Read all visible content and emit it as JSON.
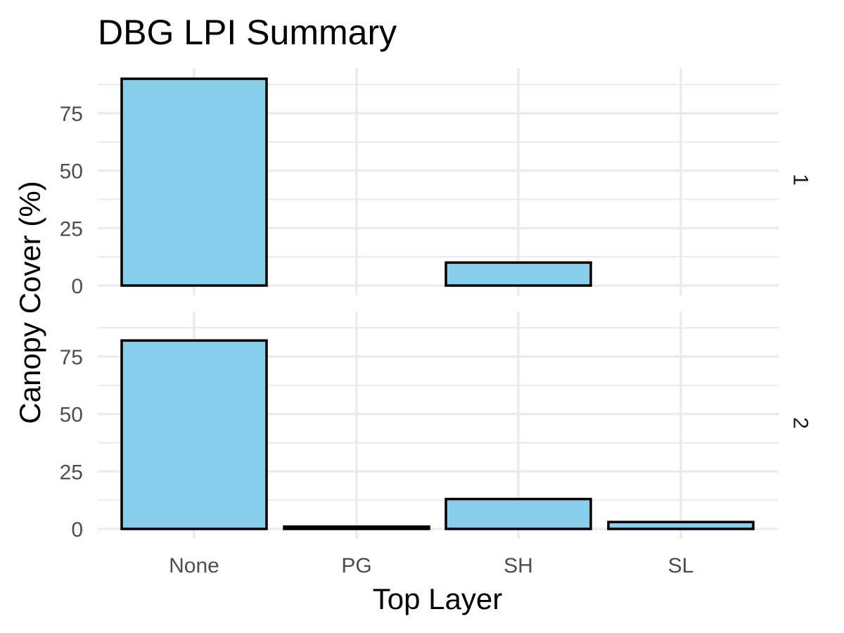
{
  "chart_data": {
    "type": "bar",
    "title": "DBG LPI Summary",
    "xlabel": "Top Layer",
    "ylabel": "Canopy Cover (%)",
    "categories": [
      "None",
      "PG",
      "SH",
      "SL"
    ],
    "ylim": [
      0,
      90
    ],
    "yticks": [
      0,
      25,
      50,
      75
    ],
    "grid": true,
    "legend": "none",
    "bar_color": "#87CEEB",
    "bar_border_color": "#000000",
    "facets": [
      {
        "label": "1",
        "values": [
          90,
          null,
          10,
          null
        ]
      },
      {
        "label": "2",
        "values": [
          82,
          1,
          13,
          3
        ]
      }
    ]
  }
}
